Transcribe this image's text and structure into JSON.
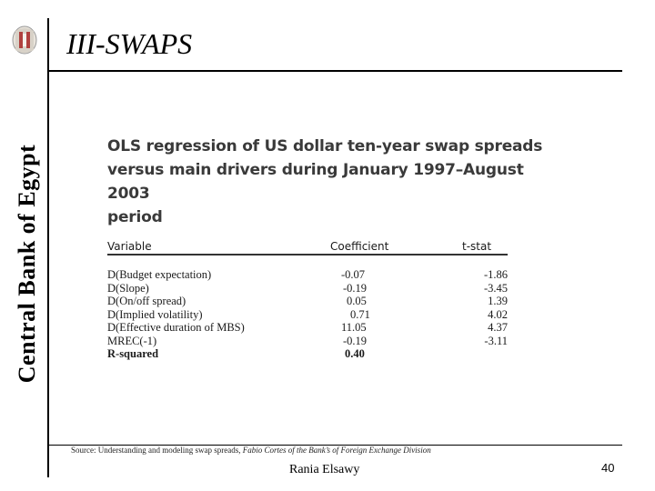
{
  "sidebar": {
    "org_name": "Central Bank of Egypt"
  },
  "slide": {
    "title": "III-SWAPS"
  },
  "figure": {
    "heading_lines": [
      "OLS regression of US dollar ten-year swap spreads",
      "versus main drivers during January 1997–August 2003",
      "period"
    ],
    "columns": [
      "Variable",
      "Coefficient",
      "t-stat"
    ],
    "rows": [
      {
        "variable": "D(Budget expectation)",
        "coefficient": "-0.07",
        "tstat": "-1.86"
      },
      {
        "variable": "D(Slope)",
        "coefficient": "-0.19",
        "tstat": "-3.45"
      },
      {
        "variable": "D(On/off spread)",
        "coefficient": "0.05",
        "tstat": "1.39"
      },
      {
        "variable": "D(Implied volatility)",
        "coefficient": "0.71",
        "tstat": "4.02"
      },
      {
        "variable": "D(Effective duration of MBS)",
        "coefficient": "11.05",
        "tstat": "4.37"
      },
      {
        "variable": "MREC(-1)",
        "coefficient": "-0.19",
        "tstat": "-3.11"
      },
      {
        "variable": "R-squared",
        "coefficient": "0.40",
        "tstat": ""
      }
    ]
  },
  "footer": {
    "source_prefix": "Source: Understanding and modeling swap spreads,",
    "source_italic": " Fabio Cortes of the Bank’s of Foreign Exchange Division",
    "author": "Rania Elsawy",
    "page_number": "40"
  },
  "colors": {
    "text": "#000000",
    "figure_text": "#3a3a3a",
    "logo_red": "#c0392b"
  },
  "icons": {
    "logo": "central-bank-logo"
  }
}
